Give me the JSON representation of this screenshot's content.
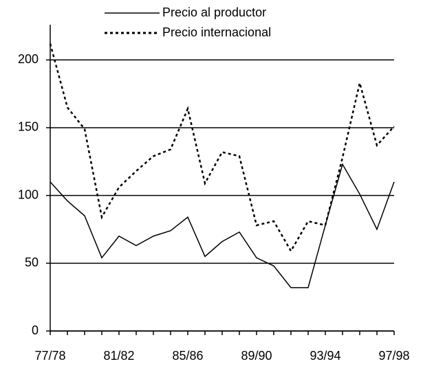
{
  "chart_data": {
    "type": "line",
    "categories": [
      "77/78",
      null,
      null,
      null,
      "81/82",
      null,
      null,
      null,
      "85/86",
      null,
      null,
      null,
      "89/90",
      null,
      null,
      null,
      "93/94",
      null,
      null,
      null,
      "97/98"
    ],
    "series": [
      {
        "name": "Precio al productor",
        "color": "#000000",
        "dash": "solid",
        "values": [
          110,
          96,
          85,
          54,
          70,
          63,
          70,
          74,
          84,
          55,
          66,
          73,
          54,
          48,
          32,
          32,
          78,
          123,
          101,
          75,
          110
        ]
      },
      {
        "name": "Precio internacional",
        "color": "#000000",
        "dash": "dotted",
        "values": [
          212,
          165,
          149,
          84,
          106,
          118,
          129,
          134,
          164,
          109,
          132,
          129,
          78,
          81,
          59,
          81,
          78,
          128,
          183,
          137,
          151
        ]
      }
    ],
    "ylim": [
      0,
      226
    ],
    "yticks": [
      0,
      50,
      100,
      150,
      200
    ],
    "grid": true,
    "legend": "top"
  }
}
